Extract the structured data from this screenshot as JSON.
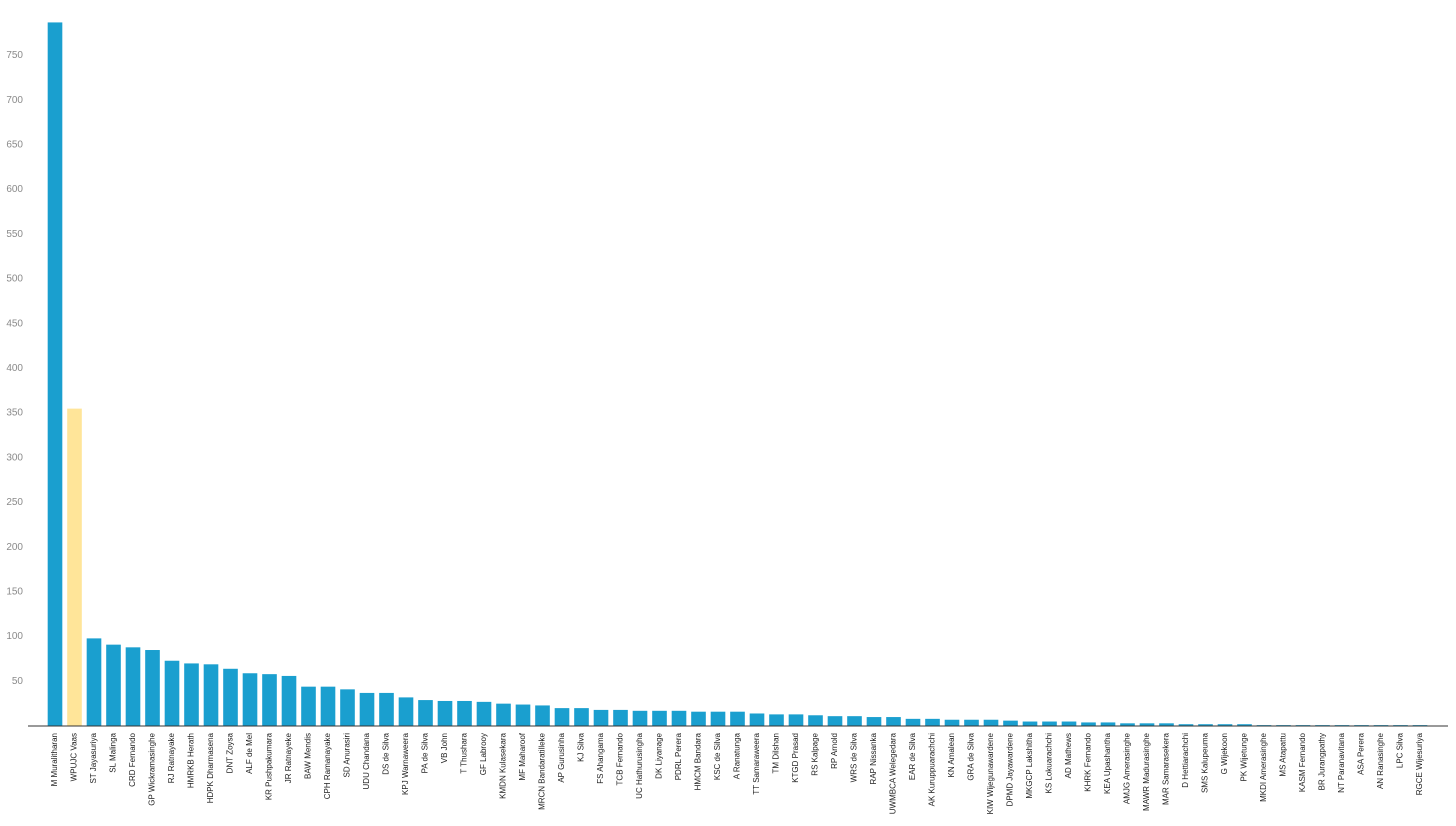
{
  "chart_data": {
    "type": "bar",
    "categories": [
      "M Muralitharan",
      "WPUJC Vaas",
      "ST Jayasuriya",
      "SL Malinga",
      "CRD Fernando",
      "GP Wickramasinghe",
      "RJ Ratnayake",
      "HMRKB Herath",
      "HDPK Dharmasena",
      "DNT Zoysa",
      "ALF de Mel",
      "KR Pushpakumara",
      "JR Ratnayeke",
      "BAW Mendis",
      "CPH Ramanayake",
      "SD Anurasiri",
      "UDU Chandana",
      "DS de Silva",
      "KPJ Warnaweera",
      "PA de Silva",
      "VB John",
      "T Thushara",
      "GF Labrooy",
      "KMDN Kulasekara",
      "MF Maharoof",
      "MRCN Bandaratilleke",
      "AP Gurusinha",
      "KJ Silva",
      "FS Ahangama",
      "TCB Fernando",
      "UC Hathurusingha",
      "DK Liyanage",
      "PDRL Perera",
      "HMCM Bandara",
      "KSC de Silva",
      "A Ranatunga",
      "TT Samaraweera",
      "TM Dilshan",
      "KTGD Prasad",
      "RS Kalpage",
      "RP Arnold",
      "WRS de Silva",
      "RAP Nissanka",
      "UWMBCA Welegedara",
      "EAR de Silva",
      "AK Kuruppuarachchi",
      "KN Amalean",
      "GRA de Silva",
      "KIW Wijegunawardene",
      "DPMD Jayawardene",
      "MKGCP Lakshitha",
      "KS Lokuarachchi",
      "AD Mathews",
      "KHRK Fernando",
      "KEA Upashantha",
      "AMJG Amerasinghe",
      "MAWR Madurasinghe",
      "MAR Samarasekera",
      "D Hettiarachchi",
      "SMS Kalupeuma",
      "G Wijekoon",
      "PK Wijetunge",
      "MKDI Amerasinghe",
      "MS Atapattu",
      "KASM Fernando",
      "BR Jurangpathy",
      "NT Paranavitana",
      "ASA Perera",
      "AN Ranasinghe",
      "LPC Silva",
      "RGCE Wijesuriya"
    ],
    "values": [
      787,
      355,
      98,
      91,
      88,
      85,
      73,
      70,
      69,
      64,
      59,
      58,
      56,
      44,
      44,
      41,
      37,
      37,
      32,
      29,
      28,
      28,
      27,
      25,
      24,
      23,
      20,
      20,
      18,
      18,
      17,
      17,
      17,
      16,
      16,
      16,
      14,
      13,
      13,
      12,
      11,
      11,
      10,
      10,
      8,
      8,
      7,
      7,
      7,
      6,
      5,
      5,
      5,
      4,
      4,
      3,
      3,
      3,
      2,
      2,
      2,
      2,
      1,
      1,
      1,
      1,
      1,
      1,
      1,
      1,
      1
    ],
    "color": "#1a9fcf",
    "highlight_color": "#ffe599",
    "highlight": [
      1
    ],
    "ylim": [
      0,
      800
    ],
    "yticks": [
      50,
      100,
      150,
      200,
      250,
      300,
      350,
      400,
      450,
      500,
      550,
      600,
      650,
      700,
      750
    ],
    "grid": false
  }
}
